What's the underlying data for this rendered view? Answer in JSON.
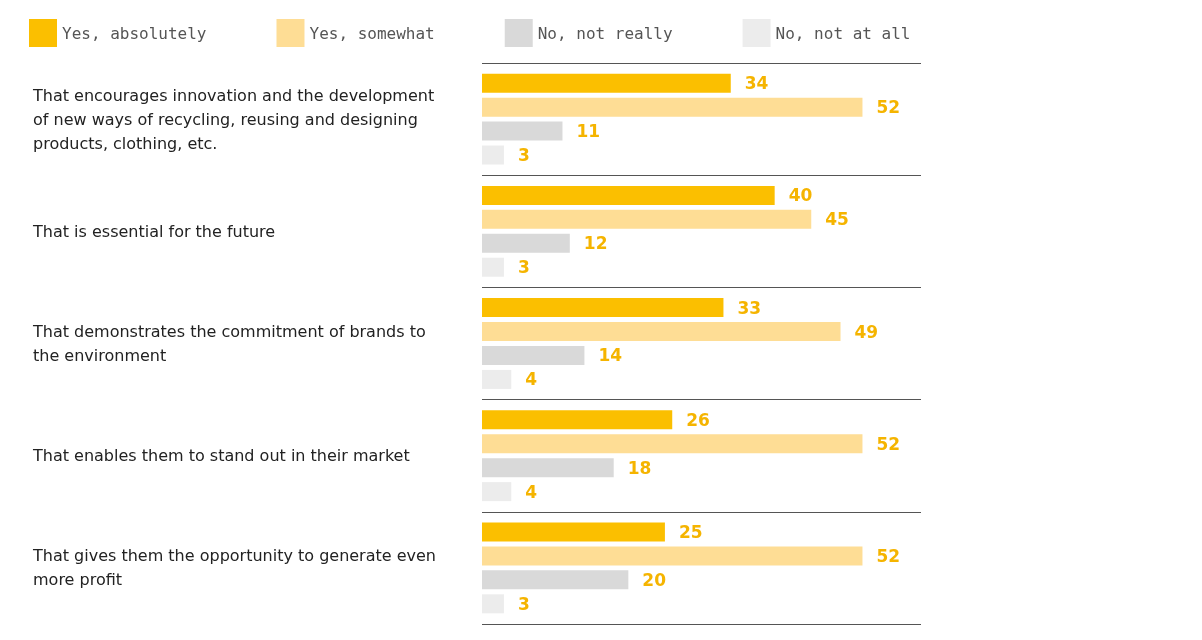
{
  "chart_data": {
    "type": "bar",
    "orientation": "horizontal",
    "categories": [
      "That encourages innovation and the development of new ways of recycling, reusing and designing products, clothing, etc.",
      "That is essential for the future",
      "That demonstrates the commitment of brands to the environment",
      "That enables them to stand out in their market",
      "That gives them the opportunity to generate even more profit"
    ],
    "series": [
      {
        "name": "Yes, absolutely",
        "color": "#fbbf00",
        "values": [
          34,
          40,
          33,
          26,
          25
        ]
      },
      {
        "name": "Yes, somewhat",
        "color": "#fedd95",
        "values": [
          52,
          45,
          49,
          52,
          52
        ]
      },
      {
        "name": "No, not really",
        "color": "#d9d9d9",
        "values": [
          11,
          12,
          14,
          18,
          20
        ]
      },
      {
        "name": "No, not at all",
        "color": "#ececec",
        "values": [
          3,
          3,
          4,
          4,
          3
        ]
      }
    ],
    "data_labels": true,
    "legend": "top left",
    "grid": "y",
    "tick_labels": "y"
  }
}
